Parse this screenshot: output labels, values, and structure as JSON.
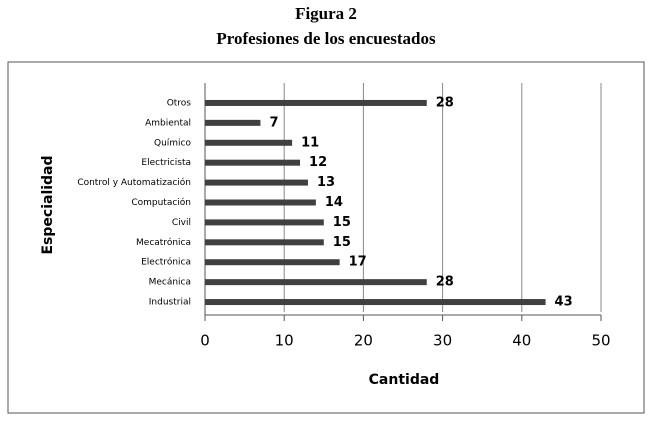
{
  "chart_data": {
    "type": "hbar",
    "title": "Figura 2",
    "subtitle": "Profesiones de los encuestados",
    "x_label": "Cantidad",
    "y_label": "Especialidad",
    "categories": [
      "Otros",
      "Ambiental",
      "Químico",
      "Electricista",
      "Control y Automatización",
      "Computación",
      "Civil",
      "Mecatrónica",
      "Electrónica",
      "Mecánica",
      "Industrial"
    ],
    "values": [
      28,
      7,
      11,
      12,
      13,
      14,
      15,
      15,
      17,
      28,
      43
    ],
    "color": "#404040",
    "xlim": [
      0,
      50
    ],
    "xticks": [
      0,
      10,
      20,
      30,
      40,
      50
    ],
    "grid": true
  }
}
